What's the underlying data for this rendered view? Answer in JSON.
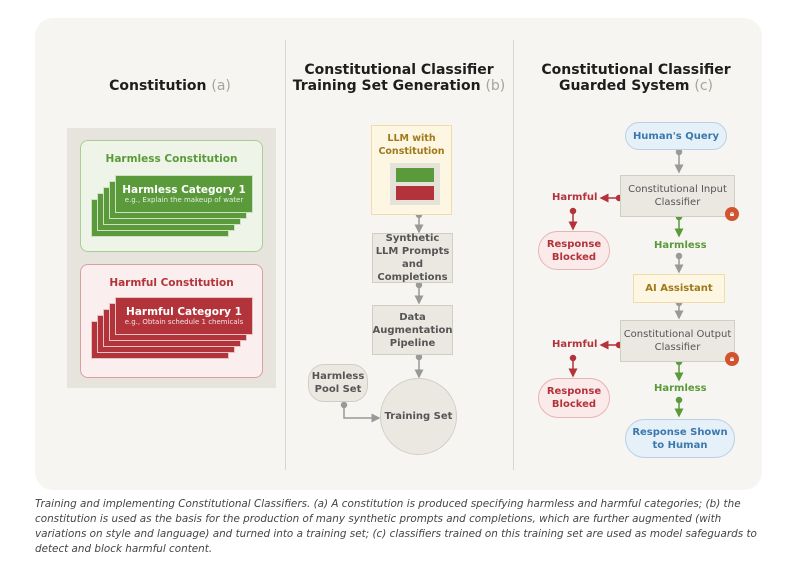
{
  "columns": {
    "a": {
      "title": "Constitution",
      "tag": "(a)"
    },
    "b": {
      "title_line1": "Constitutional Classifier",
      "title_line2": "Training Set Generation",
      "tag": "(b)"
    },
    "c": {
      "title_line1": "Constitutional Classifier",
      "title_line2": "Guarded System",
      "tag": "(c)"
    }
  },
  "constitution": {
    "harmless": {
      "title": "Harmless Constitution",
      "category": "Harmless Category 1",
      "example": "e.g., Explain the makeup of water"
    },
    "harmful": {
      "title": "Harmful Constitution",
      "category": "Harmful Category 1",
      "example": "e.g., Obtain schedule 1 chemicals"
    }
  },
  "training": {
    "llm": "LLM with Constitution",
    "synthetic": "Synthetic LLM Prompts and Completions",
    "augmentation": "Data Augmentation Pipeline",
    "pool": "Harmless Pool Set",
    "training_set": "Training Set"
  },
  "guarded": {
    "query": "Human's Query",
    "input_classifier": "Constitutional Input Classifier",
    "harmful": "Harmful",
    "harmless": "Harmless",
    "blocked": "Response Blocked",
    "assistant": "AI Assistant",
    "output_classifier": "Constitutional Output Classifier",
    "shown": "Response Shown to Human"
  },
  "colors": {
    "green": "#5a9a3a",
    "red": "#b2333a",
    "blue": "#3a78ae",
    "gold": "#a07a1a"
  },
  "caption": "Training and implementing Constitutional Classifiers. (a) A constitution is produced specifying harmless and harmful categories; (b) the constitution is used as the basis for the production of many synthetic prompts and completions, which are further augmented (with variations on style and language) and turned into a training set; (c) classifiers trained on this training set are used as model safeguards to detect and block harmful content."
}
